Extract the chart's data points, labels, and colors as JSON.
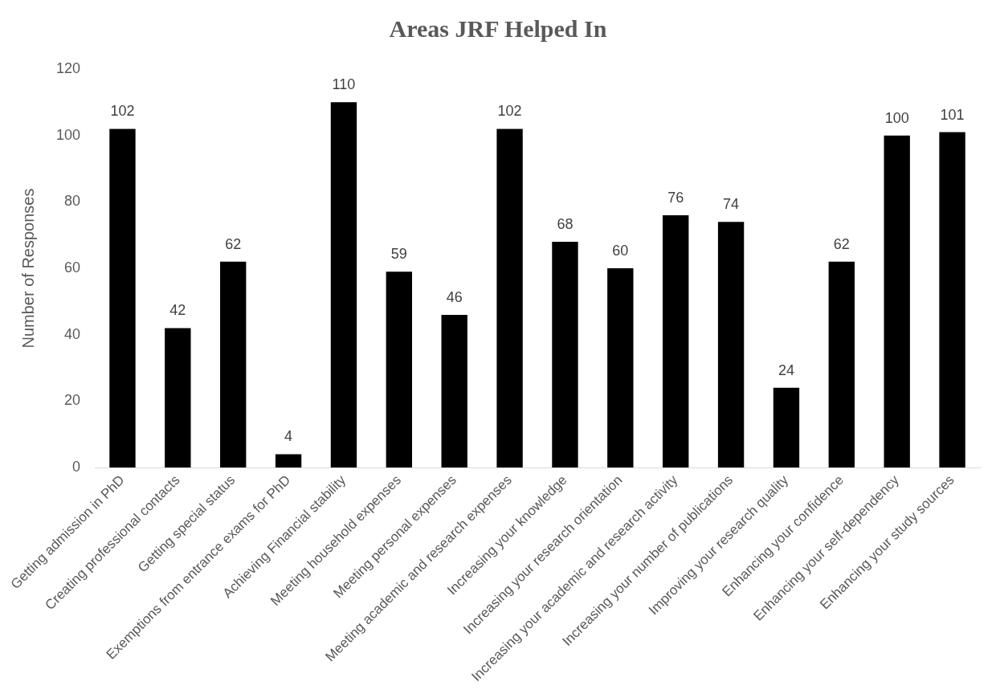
{
  "chart_data": {
    "type": "bar",
    "title": "Areas JRF Helped In",
    "ylabel": "Number of Responses",
    "categories": [
      "Getting admission in PhD",
      "Creating professional contacts",
      "Getting special status",
      "Exemptions from entrance exams for PhD",
      "Achieving Financial stability",
      "Meeting household expenses",
      "Meeting personal expenses",
      "Meeting academic and research expenses",
      "Increasing your knowledge",
      "Increasing your research orientation",
      "Increasing your academic and research activity",
      "Increasing your number of publications",
      "Improving your research quality",
      "Enhancing your confidence",
      "Enhancing your self-dependency",
      "Enhancing your study sources"
    ],
    "values": [
      102,
      42,
      62,
      4,
      110,
      59,
      46,
      102,
      68,
      60,
      76,
      74,
      24,
      62,
      100,
      101
    ],
    "color": "#000000",
    "ylim": [
      0,
      120
    ],
    "yticks": [
      0,
      20,
      40,
      60,
      80,
      100,
      120
    ],
    "grid": false,
    "legend": false,
    "data_labels": true
  }
}
